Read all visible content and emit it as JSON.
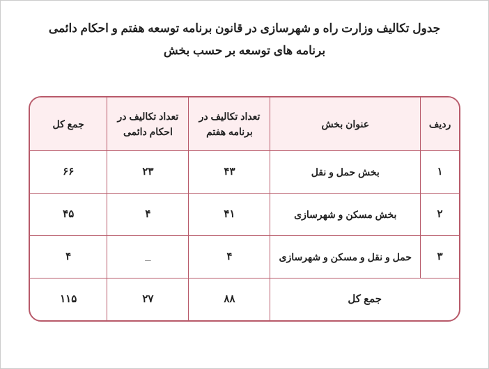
{
  "title_line1": "جدول تکالیف وزارت راه و شهرسازی در قانون برنامه توسعه هفتم و احکام دائمی",
  "title_line2": "برنامه های توسعه بر حسب بخش",
  "table": {
    "columns": [
      "ردیف",
      "عنوان بخش",
      "تعداد تکالیف در برنامه هفتم",
      "تعداد تکالیف در احکام دائمی",
      "جمع کل"
    ],
    "rows": [
      {
        "index": "۱",
        "name": "بخش حمل و نقل",
        "h7": "۴۳",
        "perm": "۲۳",
        "total": "۶۶"
      },
      {
        "index": "۲",
        "name": "بخش مسکن و شهرسازی",
        "h7": "۴۱",
        "perm": "۴",
        "total": "۴۵"
      },
      {
        "index": "۳",
        "name": "حمل و نقل و مسکن و شهرسازی",
        "h7": "۴",
        "perm": "_",
        "total": "۴"
      }
    ],
    "footer": {
      "label": "جمع کل",
      "h7": "۸۸",
      "perm": "۲۷",
      "total": "۱۱۵"
    },
    "header_bg": "#fdeef0",
    "border_color": "#b85a6a",
    "text_color": "#222222",
    "background_color": "#ffffff"
  }
}
